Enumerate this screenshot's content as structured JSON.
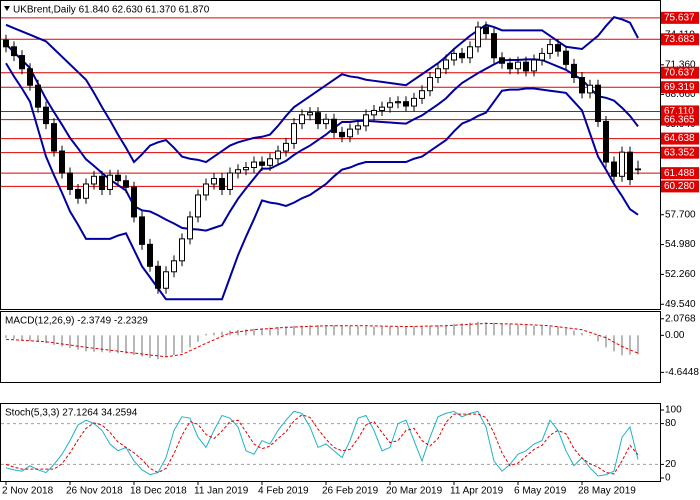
{
  "chart_data": [
    {
      "type": "candlestick",
      "title": "UKBrent,Daily  61.840 62.630 61.370 61.870",
      "categories": [
        "2 Nov 2018",
        null,
        null,
        null,
        null,
        null,
        null,
        null,
        "26 Nov 2018",
        null,
        null,
        null,
        null,
        null,
        null,
        null,
        "18 Dec 2018",
        null,
        null,
        null,
        null,
        null,
        null,
        null,
        "11 Jan 2019",
        null,
        null,
        null,
        null,
        null,
        null,
        null,
        "4 Feb 2019",
        null,
        null,
        null,
        null,
        null,
        null,
        null,
        "26 Feb 2019",
        null,
        null,
        null,
        null,
        null,
        null,
        null,
        "20 Mar 2019",
        null,
        null,
        null,
        null,
        null,
        null,
        null,
        "11 Apr 2019",
        null,
        null,
        null,
        null,
        null,
        null,
        null,
        "6 May 2019",
        null,
        null,
        null,
        null,
        null,
        null,
        null,
        "28 May 2019",
        null,
        null,
        null,
        null,
        null,
        null,
        null
      ],
      "open": [
        73.6,
        73.0,
        72.2,
        71.0,
        69.5,
        67.5,
        66.0,
        63.5,
        61.5,
        60.0,
        59.2,
        60.5,
        61.2,
        60.0,
        61.3,
        60.8,
        60.2,
        57.5,
        55.0,
        53.0,
        51.0,
        52.5,
        53.5,
        55.5,
        57.5,
        59.5,
        60.5,
        61.0,
        60.0,
        61.5,
        61.8,
        62.0,
        62.5,
        62.2,
        62.8,
        63.5,
        64.2,
        66.0,
        66.8,
        67.0,
        66.0,
        66.4,
        65.2,
        64.8,
        65.5,
        65.8,
        66.8,
        67.2,
        67.5,
        67.9,
        68.0,
        67.6,
        68.3,
        69.0,
        70.2,
        71.0,
        71.8,
        72.4,
        72.0,
        73.0,
        74.8,
        74.2,
        72.0,
        71.5,
        71.0,
        71.6,
        70.8,
        71.8,
        72.4,
        73.2,
        72.6,
        71.4,
        70.2,
        68.8,
        69.5,
        66.2,
        62.5,
        61.2,
        63.4,
        61.84
      ],
      "high": [
        74.1,
        73.5,
        72.7,
        71.5,
        70.0,
        68.0,
        66.5,
        64.0,
        62.0,
        60.5,
        61.0,
        61.7,
        61.7,
        61.8,
        61.8,
        61.3,
        60.7,
        58.0,
        55.5,
        53.5,
        53.0,
        54.0,
        56.0,
        58.0,
        60.0,
        61.0,
        61.5,
        61.5,
        62.0,
        62.3,
        62.5,
        63.0,
        63.0,
        63.3,
        64.0,
        64.7,
        66.5,
        67.3,
        67.5,
        67.5,
        66.9,
        66.9,
        65.7,
        66.0,
        66.3,
        67.3,
        67.7,
        68.0,
        68.4,
        68.5,
        68.5,
        68.8,
        69.5,
        70.7,
        71.5,
        72.3,
        72.9,
        72.9,
        73.5,
        75.3,
        75.3,
        74.7,
        72.5,
        72.0,
        72.1,
        72.1,
        72.3,
        72.9,
        73.7,
        73.7,
        73.1,
        71.9,
        70.7,
        70.0,
        70.0,
        66.7,
        63.0,
        63.9,
        63.9,
        62.63
      ],
      "low": [
        72.5,
        71.7,
        70.5,
        69.0,
        67.0,
        65.5,
        63.0,
        61.0,
        59.5,
        58.7,
        58.7,
        60.0,
        59.5,
        59.5,
        60.3,
        59.7,
        57.0,
        54.5,
        52.5,
        50.5,
        50.5,
        52.0,
        53.0,
        55.0,
        57.0,
        59.0,
        60.0,
        59.5,
        59.5,
        61.0,
        61.3,
        61.5,
        61.7,
        61.7,
        62.3,
        63.0,
        63.7,
        65.5,
        66.3,
        65.5,
        65.5,
        64.7,
        64.3,
        64.3,
        65.0,
        65.3,
        66.3,
        66.7,
        67.0,
        67.4,
        67.1,
        67.1,
        67.8,
        68.5,
        69.7,
        70.5,
        71.3,
        71.5,
        71.5,
        72.5,
        73.7,
        71.5,
        71.0,
        70.5,
        70.5,
        70.3,
        70.3,
        71.3,
        71.9,
        72.1,
        70.9,
        69.7,
        68.3,
        68.3,
        65.7,
        62.0,
        60.7,
        60.7,
        60.4,
        61.37
      ],
      "close": [
        73.0,
        72.2,
        71.0,
        69.5,
        67.5,
        66.0,
        63.5,
        61.5,
        60.0,
        59.2,
        60.5,
        61.2,
        60.0,
        61.3,
        60.8,
        60.2,
        57.5,
        55.0,
        53.0,
        51.0,
        52.5,
        53.5,
        55.5,
        57.5,
        59.5,
        60.5,
        61.0,
        60.0,
        61.5,
        61.8,
        62.0,
        62.5,
        62.2,
        62.8,
        63.5,
        64.2,
        66.0,
        66.8,
        67.0,
        66.0,
        66.4,
        65.2,
        64.8,
        65.5,
        65.8,
        66.8,
        67.2,
        67.5,
        67.9,
        68.0,
        67.6,
        68.3,
        69.0,
        70.2,
        71.0,
        71.8,
        72.4,
        72.0,
        73.0,
        74.8,
        74.2,
        72.0,
        71.5,
        71.0,
        71.6,
        70.8,
        71.8,
        72.4,
        73.2,
        72.6,
        71.4,
        70.2,
        68.8,
        69.5,
        66.2,
        62.5,
        61.2,
        63.4,
        60.9,
        61.87
      ],
      "candle_color": "#000000",
      "series": [
        {
          "type": "line",
          "color": "#0000a0",
          "values": [
            75.0,
            74.7,
            74.4,
            74.1,
            73.8,
            73.5,
            72.8,
            72.1,
            71.4,
            70.7,
            70.0,
            68.8,
            67.5,
            66.3,
            65.0,
            63.8,
            62.5,
            63.2,
            64.0,
            64.3,
            64.5,
            63.8,
            63.0,
            62.8,
            62.7,
            62.5,
            63.0,
            63.5,
            64.0,
            64.3,
            64.5,
            64.7,
            64.8,
            65.0,
            65.8,
            66.7,
            67.5,
            68.0,
            68.5,
            69.0,
            69.5,
            70.0,
            70.5,
            70.3,
            70.2,
            70.0,
            69.9,
            69.8,
            69.7,
            69.6,
            69.5,
            70.0,
            70.5,
            71.0,
            71.5,
            72.1,
            72.8,
            73.4,
            74.0,
            74.5,
            75.0,
            74.8,
            74.5,
            74.5,
            74.5,
            74.5,
            74.5,
            74.5,
            74.0,
            73.5,
            73.0,
            72.9,
            72.8,
            73.4,
            74.0,
            74.9,
            75.7,
            75.5,
            75.2,
            73.8
          ]
        },
        {
          "type": "line",
          "color": "#0000a0",
          "values": [
            73.25,
            72.5,
            71.8,
            71.05,
            69.65,
            68.25,
            67.05,
            65.9,
            64.7,
            63.75,
            62.75,
            62.15,
            61.5,
            60.9,
            60.4,
            59.9,
            58.5,
            58.1,
            58.0,
            57.65,
            57.25,
            56.9,
            56.5,
            56.4,
            56.35,
            56.25,
            56.5,
            56.75,
            58.0,
            59.15,
            60.1,
            61.0,
            61.9,
            61.9,
            62.25,
            62.6,
            63.15,
            63.6,
            64.0,
            64.5,
            65.0,
            65.6,
            66.15,
            66.15,
            66.25,
            66.25,
            66.2,
            66.15,
            66.1,
            66.05,
            66.0,
            66.4,
            66.75,
            67.25,
            67.75,
            68.3,
            69.05,
            69.7,
            70.15,
            70.6,
            71.0,
            71.4,
            71.75,
            71.8,
            71.8,
            71.85,
            71.85,
            71.8,
            71.5,
            71.2,
            70.9,
            70.45,
            70.0,
            69.25,
            68.5,
            68.35,
            68.1,
            67.45,
            66.7,
            65.75
          ]
        },
        {
          "type": "line",
          "color": "#0000a0",
          "values": [
            71.5,
            70.3,
            69.2,
            68.0,
            65.5,
            63.0,
            61.3,
            59.7,
            58.0,
            56.8,
            55.5,
            55.5,
            55.5,
            55.5,
            55.8,
            56.0,
            54.5,
            53.0,
            52.0,
            51.0,
            50.0,
            50.0,
            50.0,
            50.0,
            50.0,
            50.0,
            50.0,
            50.0,
            52.0,
            54.0,
            55.7,
            57.3,
            59.0,
            58.8,
            58.7,
            58.5,
            58.8,
            59.2,
            59.5,
            60.0,
            60.5,
            61.2,
            61.8,
            62.0,
            62.3,
            62.5,
            62.5,
            62.5,
            62.5,
            62.5,
            62.5,
            62.8,
            63.0,
            63.5,
            64.0,
            64.5,
            65.3,
            66.0,
            66.3,
            66.7,
            67.0,
            68.0,
            69.0,
            69.1,
            69.1,
            69.2,
            69.2,
            69.1,
            69.0,
            68.9,
            68.8,
            68.0,
            67.2,
            65.1,
            63.0,
            61.8,
            60.5,
            59.4,
            58.2,
            57.7
          ]
        }
      ],
      "levels": [
        75.637,
        73.683,
        70.637,
        69.319,
        {
          "value": 67.11,
          "label": "67.110"
        },
        66.365,
        64.638,
        63.352,
        61.488,
        {
          "value": 60.28,
          "label": "60.280"
        }
      ],
      "level_color": "#e00000",
      "ylim": [
        49.2,
        76.9
      ],
      "yticks": [
        {
          "value": 74.11,
          "label": "74.110"
        },
        {
          "value": 71.36,
          "label": "71.360"
        },
        {
          "value": 68.66,
          "label": "68.660"
        },
        {
          "value": 65.94,
          "label": "65.940"
        },
        {
          "value": 57.7,
          "label": "57.700"
        },
        {
          "value": 54.98,
          "label": "54.980"
        },
        {
          "value": 52.26,
          "label": "52.260"
        },
        {
          "value": 49.54,
          "label": "49.540"
        }
      ]
    },
    {
      "type": "bar",
      "title": "MACD(12,26,9) -2.3749 -2.2329",
      "series": [
        {
          "type": "bar",
          "color": "#a0a0a0",
          "values": [
            -0.3,
            -0.44,
            -0.58,
            -0.72,
            -0.86,
            -1.0,
            -1.2,
            -1.4,
            -1.6,
            -1.8,
            -2.0,
            -2.06,
            -2.12,
            -2.18,
            -2.24,
            -2.3,
            -2.48,
            -2.65,
            -2.82,
            -3.0,
            -2.73,
            -2.47,
            -2.2,
            -1.5,
            -0.8,
            0.2,
            0.33,
            0.47,
            0.6,
            0.68,
            0.75,
            0.83,
            0.9,
            0.98,
            1.05,
            1.13,
            1.2,
            1.23,
            1.25,
            1.28,
            1.3,
            1.26,
            1.22,
            1.18,
            1.14,
            1.1,
            1.1,
            1.1,
            1.1,
            1.1,
            1.1,
            1.14,
            1.18,
            1.22,
            1.26,
            1.3,
            1.4,
            1.5,
            1.6,
            1.7,
            1.63,
            1.57,
            1.5,
            1.43,
            1.35,
            1.28,
            1.2,
            1.17,
            1.13,
            1.1,
            0.85,
            0.6,
            0.3,
            0.0,
            -0.75,
            -1.5,
            -2.0,
            -2.5,
            -2.44,
            -2.3749
          ]
        },
        {
          "type": "line",
          "color": "#e00000",
          "dashed": true,
          "values": [
            -0.5,
            -0.56,
            -0.62,
            -0.68,
            -0.74,
            -0.8,
            -0.94,
            -1.08,
            -1.22,
            -1.36,
            -1.5,
            -1.62,
            -1.74,
            -1.86,
            -1.98,
            -2.1,
            -2.22,
            -2.34,
            -2.46,
            -2.58,
            -2.7,
            -2.55,
            -2.4,
            -1.93,
            -1.47,
            -1.0,
            -0.57,
            -0.13,
            0.3,
            0.43,
            0.57,
            0.7,
            0.78,
            0.85,
            0.93,
            1.0,
            1.04,
            1.08,
            1.12,
            1.16,
            1.2,
            1.2,
            1.2,
            1.2,
            1.2,
            1.2,
            1.18,
            1.16,
            1.14,
            1.12,
            1.1,
            1.12,
            1.14,
            1.16,
            1.18,
            1.2,
            1.26,
            1.32,
            1.38,
            1.44,
            1.5,
            1.48,
            1.45,
            1.43,
            1.4,
            1.35,
            1.3,
            1.25,
            1.2,
            1.08,
            0.95,
            0.83,
            0.7,
            0.37,
            0.03,
            -0.3,
            -0.85,
            -1.4,
            -1.82,
            -2.2329
          ]
        }
      ],
      "ylim": [
        -5.6,
        2.8
      ],
      "yticks": [
        2.0768,
        {
          "value": 0,
          "label": "0.00"
        },
        -4.6448
      ]
    },
    {
      "type": "line",
      "title": "Stoch(5,3,3) 27.1264 34.2594",
      "series": [
        {
          "type": "line",
          "color": "#20b2c8",
          "values": [
            15,
            12,
            10,
            18,
            12,
            8,
            20,
            35,
            55,
            78,
            85,
            80,
            70,
            50,
            40,
            45,
            25,
            12,
            5,
            8,
            30,
            70,
            90,
            88,
            60,
            45,
            70,
            92,
            88,
            75,
            40,
            35,
            55,
            50,
            70,
            85,
            98,
            95,
            75,
            45,
            50,
            40,
            30,
            55,
            88,
            92,
            70,
            40,
            45,
            80,
            85,
            55,
            25,
            60,
            90,
            95,
            98,
            90,
            95,
            98,
            75,
            25,
            10,
            20,
            35,
            40,
            50,
            55,
            85,
            70,
            40,
            18,
            30,
            15,
            3,
            5,
            10,
            60,
            75,
            27.1264
          ]
        },
        {
          "type": "line",
          "color": "#e00000",
          "dashed": true,
          "values": [
            20,
            16,
            13,
            13,
            13,
            13,
            13,
            21,
            37,
            56,
            73,
            81,
            78,
            67,
            53,
            45,
            37,
            27,
            14,
            8,
            14,
            36,
            63,
            83,
            79,
            64,
            58,
            69,
            83,
            85,
            68,
            50,
            43,
            47,
            58,
            68,
            84,
            93,
            89,
            72,
            57,
            45,
            40,
            42,
            58,
            78,
            83,
            67,
            52,
            55,
            70,
            73,
            55,
            47,
            58,
            82,
            94,
            94,
            94,
            94,
            89,
            66,
            37,
            18,
            22,
            32,
            42,
            48,
            63,
            70,
            65,
            43,
            29,
            21,
            16,
            8,
            6,
            25,
            48,
            34.2594
          ]
        }
      ],
      "levels": [
        20,
        80
      ],
      "level_color": "#a0a0a0",
      "level_dashed": true,
      "ylim": [
        0,
        100
      ],
      "yticks": [
        100,
        80,
        20,
        0
      ]
    }
  ]
}
